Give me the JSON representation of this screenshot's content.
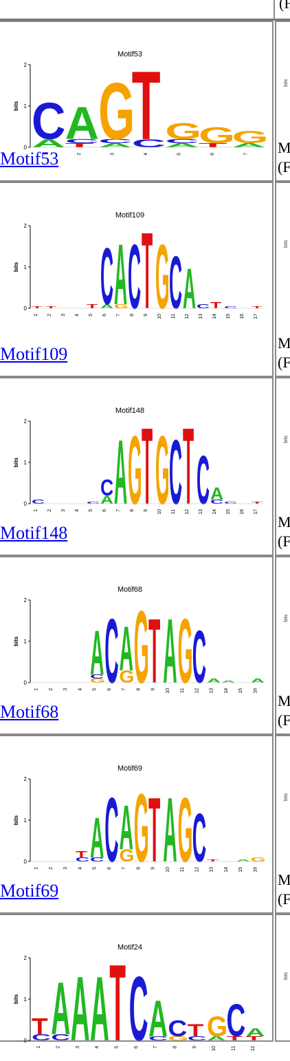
{
  "top_fragment": "(F",
  "rows": [
    {
      "title": "Motif53",
      "link": "Motif53",
      "right_line1": "M",
      "right_line2": "(F",
      "ticks": [
        "1",
        "2",
        "3",
        "4",
        "5",
        "6",
        "7"
      ],
      "logo_columns": [
        [
          {
            "l": "A",
            "c": "green",
            "h": 0.2
          },
          {
            "l": "C",
            "c": "blue",
            "h": 0.9
          }
        ],
        [
          {
            "l": "T",
            "c": "red",
            "h": 0.1
          },
          {
            "l": "C",
            "c": "blue",
            "h": 0.1
          },
          {
            "l": "A",
            "c": "green",
            "h": 0.8
          }
        ],
        [
          {
            "l": "A",
            "c": "green",
            "h": 0.1
          },
          {
            "l": "C",
            "c": "blue",
            "h": 0.1
          },
          {
            "l": "G",
            "c": "orange",
            "h": 1.4
          }
        ],
        [
          {
            "l": "C",
            "c": "blue",
            "h": 0.2
          },
          {
            "l": "T",
            "c": "red",
            "h": 1.7
          }
        ],
        [
          {
            "l": "A",
            "c": "green",
            "h": 0.1
          },
          {
            "l": "C",
            "c": "blue",
            "h": 0.1
          },
          {
            "l": "G",
            "c": "orange",
            "h": 0.4
          }
        ],
        [
          {
            "l": "T",
            "c": "red",
            "h": 0.1
          },
          {
            "l": "G",
            "c": "orange",
            "h": 0.4
          }
        ],
        [
          {
            "l": "A",
            "c": "green",
            "h": 0.1
          },
          {
            "l": "G",
            "c": "orange",
            "h": 0.3
          }
        ]
      ]
    },
    {
      "title": "Motif109",
      "link": "Motif109",
      "right_line1": "M",
      "right_line2": "(F",
      "ticks": [
        "1",
        "2",
        "3",
        "4",
        "5",
        "6",
        "7",
        "8",
        "9",
        "10",
        "11",
        "12",
        "13",
        "14",
        "15",
        "16",
        "17"
      ],
      "logo_columns": [
        [
          {
            "l": "T",
            "c": "red",
            "h": 0.05
          }
        ],
        [
          {
            "l": "T",
            "c": "red",
            "h": 0.05
          }
        ],
        [],
        [],
        [
          {
            "l": "T",
            "c": "red",
            "h": 0.1
          }
        ],
        [
          {
            "l": "A",
            "c": "green",
            "h": 0.1
          },
          {
            "l": "C",
            "c": "blue",
            "h": 1.4
          }
        ],
        [
          {
            "l": "G",
            "c": "orange",
            "h": 0.1
          },
          {
            "l": "A",
            "c": "green",
            "h": 1.5
          }
        ],
        [
          {
            "l": "C",
            "c": "blue",
            "h": 1.6
          }
        ],
        [
          {
            "l": "T",
            "c": "red",
            "h": 1.9
          }
        ],
        [
          {
            "l": "G",
            "c": "orange",
            "h": 1.6
          }
        ],
        [
          {
            "l": "C",
            "c": "blue",
            "h": 1.3
          }
        ],
        [
          {
            "l": "A",
            "c": "green",
            "h": 1.0
          }
        ],
        [
          {
            "l": "C",
            "c": "blue",
            "h": 0.1
          }
        ],
        [
          {
            "l": "T",
            "c": "red",
            "h": 0.15
          }
        ],
        [
          {
            "l": "C",
            "c": "blue",
            "h": 0.05
          }
        ],
        [],
        [
          {
            "l": "T",
            "c": "red",
            "h": 0.05
          }
        ]
      ]
    },
    {
      "title": "Motif148",
      "link": "Motif148",
      "right_line1": "M",
      "right_line2": "(F",
      "ticks": [
        "1",
        "2",
        "3",
        "4",
        "5",
        "6",
        "7",
        "8",
        "9",
        "10",
        "11",
        "12",
        "13",
        "14",
        "15",
        "16",
        "17"
      ],
      "logo_columns": [
        [
          {
            "l": "C",
            "c": "blue",
            "h": 0.1
          }
        ],
        [],
        [],
        [],
        [
          {
            "l": "C",
            "c": "blue",
            "h": 0.05
          }
        ],
        [
          {
            "l": "A",
            "c": "green",
            "h": 0.2
          },
          {
            "l": "C",
            "c": "blue",
            "h": 0.4
          }
        ],
        [
          {
            "l": "A",
            "c": "green",
            "h": 1.6
          }
        ],
        [
          {
            "l": "G",
            "c": "orange",
            "h": 1.7
          }
        ],
        [
          {
            "l": "T",
            "c": "red",
            "h": 1.9
          }
        ],
        [
          {
            "l": "G",
            "c": "orange",
            "h": 1.7
          }
        ],
        [
          {
            "l": "C",
            "c": "blue",
            "h": 1.6
          }
        ],
        [
          {
            "l": "T",
            "c": "red",
            "h": 1.9
          }
        ],
        [
          {
            "l": "C",
            "c": "blue",
            "h": 1.2
          }
        ],
        [
          {
            "l": "C",
            "c": "blue",
            "h": 0.1
          },
          {
            "l": "A",
            "c": "green",
            "h": 0.3
          }
        ],
        [
          {
            "l": "C",
            "c": "blue",
            "h": 0.05
          }
        ],
        [],
        [
          {
            "l": "T",
            "c": "red",
            "h": 0.05
          }
        ]
      ]
    },
    {
      "title": "Motif68",
      "link": "Motif68",
      "right_line1": "M",
      "right_line2": "(F",
      "ticks": [
        "1",
        "2",
        "3",
        "4",
        "5",
        "6",
        "7",
        "8",
        "9",
        "10",
        "11",
        "12",
        "13",
        "14",
        "15",
        "16"
      ],
      "logo_columns": [
        [],
        [],
        [],
        [],
        [
          {
            "l": "G",
            "c": "orange",
            "h": 0.1
          },
          {
            "l": "C",
            "c": "blue",
            "h": 0.1
          },
          {
            "l": "A",
            "c": "green",
            "h": 1.1
          }
        ],
        [
          {
            "l": "C",
            "c": "blue",
            "h": 1.6
          }
        ],
        [
          {
            "l": "G",
            "c": "orange",
            "h": 0.3
          },
          {
            "l": "A",
            "c": "green",
            "h": 1.1
          }
        ],
        [
          {
            "l": "G",
            "c": "orange",
            "h": 1.8
          }
        ],
        [
          {
            "l": "T",
            "c": "red",
            "h": 1.6
          }
        ],
        [
          {
            "l": "A",
            "c": "green",
            "h": 1.6
          }
        ],
        [
          {
            "l": "G",
            "c": "orange",
            "h": 1.6
          }
        ],
        [
          {
            "l": "C",
            "c": "blue",
            "h": 1.3
          }
        ],
        [
          {
            "l": "A",
            "c": "green",
            "h": 0.1
          }
        ],
        [
          {
            "l": "A",
            "c": "green",
            "h": 0.05
          }
        ],
        [],
        [
          {
            "l": "A",
            "c": "green",
            "h": 0.1
          }
        ]
      ]
    },
    {
      "title": "Motif69",
      "link": "Motif69",
      "right_line1": "M",
      "right_line2": "(F",
      "ticks": [
        "1",
        "2",
        "3",
        "4",
        "5",
        "6",
        "7",
        "8",
        "9",
        "10",
        "11",
        "12",
        "13",
        "14",
        "15",
        "16"
      ],
      "logo_columns": [
        [],
        [],
        [],
        [
          {
            "l": "C",
            "c": "blue",
            "h": 0.1
          },
          {
            "l": "T",
            "c": "red",
            "h": 0.15
          }
        ],
        [
          {
            "l": "C",
            "c": "blue",
            "h": 0.1
          },
          {
            "l": "A",
            "c": "green",
            "h": 1.0
          }
        ],
        [
          {
            "l": "C",
            "c": "blue",
            "h": 1.6
          }
        ],
        [
          {
            "l": "G",
            "c": "orange",
            "h": 0.3
          },
          {
            "l": "A",
            "c": "green",
            "h": 1.1
          }
        ],
        [
          {
            "l": "G",
            "c": "orange",
            "h": 1.7
          }
        ],
        [
          {
            "l": "T",
            "c": "red",
            "h": 1.6
          }
        ],
        [
          {
            "l": "A",
            "c": "green",
            "h": 1.6
          }
        ],
        [
          {
            "l": "G",
            "c": "orange",
            "h": 1.6
          }
        ],
        [
          {
            "l": "C",
            "c": "blue",
            "h": 1.2
          }
        ],
        [
          {
            "l": "T",
            "c": "red",
            "h": 0.05
          }
        ],
        [],
        [
          {
            "l": "A",
            "c": "green",
            "h": 0.05
          }
        ],
        [
          {
            "l": "G",
            "c": "orange",
            "h": 0.1
          }
        ]
      ]
    },
    {
      "title": "Motif24",
      "link": "",
      "right_line1": "",
      "right_line2": "",
      "ticks": [
        "1",
        "2",
        "3",
        "4",
        "5",
        "6",
        "7",
        "8",
        "9",
        "10",
        "11",
        "12"
      ],
      "logo_columns": [
        [
          {
            "l": "C",
            "c": "blue",
            "h": 0.15
          },
          {
            "l": "T",
            "c": "red",
            "h": 0.4
          }
        ],
        [
          {
            "l": "C",
            "c": "blue",
            "h": 0.15
          },
          {
            "l": "A",
            "c": "green",
            "h": 1.3
          }
        ],
        [
          {
            "l": "A",
            "c": "green",
            "h": 1.6
          }
        ],
        [
          {
            "l": "A",
            "c": "green",
            "h": 1.6
          }
        ],
        [
          {
            "l": "T",
            "c": "red",
            "h": 1.9
          }
        ],
        [
          {
            "l": "C",
            "c": "blue",
            "h": 1.6
          }
        ],
        [
          {
            "l": "C",
            "c": "blue",
            "h": 0.1
          },
          {
            "l": "A",
            "c": "green",
            "h": 0.9
          }
        ],
        [
          {
            "l": "G",
            "c": "orange",
            "h": 0.1
          },
          {
            "l": "C",
            "c": "blue",
            "h": 0.4
          }
        ],
        [
          {
            "l": "C",
            "c": "blue",
            "h": 0.1
          },
          {
            "l": "T",
            "c": "red",
            "h": 0.3
          }
        ],
        [
          {
            "l": "A",
            "c": "green",
            "h": 0.1
          },
          {
            "l": "G",
            "c": "orange",
            "h": 0.5
          }
        ],
        [
          {
            "l": "T",
            "c": "red",
            "h": 0.1
          },
          {
            "l": "C",
            "c": "blue",
            "h": 0.8
          }
        ],
        [
          {
            "l": "T",
            "c": "red",
            "h": 0.1
          },
          {
            "l": "A",
            "c": "green",
            "h": 0.2
          }
        ]
      ]
    }
  ],
  "axis": {
    "ylabel": "bits",
    "yticks": [
      "0",
      "1",
      "2"
    ]
  },
  "colors": {
    "A": "#22b822",
    "C": "#1a1ad6",
    "G": "#f5a300",
    "T": "#e01010",
    "link": "#0000ee",
    "border": "#888888"
  }
}
